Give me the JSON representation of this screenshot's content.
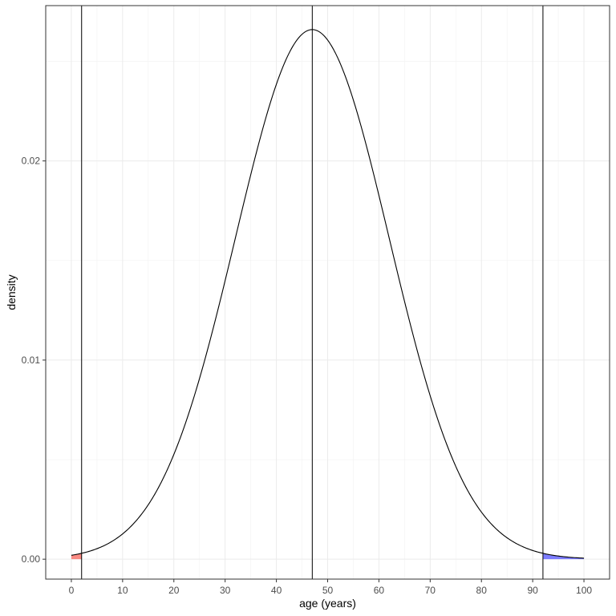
{
  "chart_data": {
    "type": "line",
    "title": "",
    "xlabel": "age (years)",
    "ylabel": "density",
    "xlim": [
      -5,
      105
    ],
    "ylim": [
      -0.001,
      0.0278
    ],
    "x_ticks": [
      0,
      10,
      20,
      30,
      40,
      50,
      60,
      70,
      80,
      90,
      100
    ],
    "x_tick_labels": [
      "0",
      "10",
      "20",
      "30",
      "40",
      "50",
      "60",
      "70",
      "80",
      "90",
      "100"
    ],
    "y_ticks": [
      0.0,
      0.01,
      0.02
    ],
    "y_tick_labels": [
      "0.00",
      "0.01",
      "0.02"
    ],
    "grid": true,
    "distribution": {
      "mean": 47,
      "sd": 15
    },
    "vertical_lines": [
      2,
      47,
      92
    ],
    "shaded_regions": [
      {
        "from": 0,
        "to": 2,
        "color": "#f8766d"
      },
      {
        "from": 92,
        "to": 100,
        "color": "#6666ff"
      }
    ],
    "series": [
      {
        "x": [
          0,
          5,
          10,
          15,
          20,
          25,
          30,
          35,
          40,
          45,
          47,
          50,
          55,
          60,
          65,
          70,
          75,
          80,
          85,
          90,
          95,
          100
        ],
        "y": [
          0.00022,
          0.00053,
          0.00124,
          0.0027,
          0.00529,
          0.00921,
          0.01441,
          0.01948,
          0.02386,
          0.02616,
          0.0266,
          0.02616,
          0.02285,
          0.0183,
          0.01292,
          0.00814,
          0.00449,
          0.00221,
          0.00098,
          0.00039,
          0.00013,
          4e-05
        ],
        "color": "#000000"
      }
    ]
  }
}
